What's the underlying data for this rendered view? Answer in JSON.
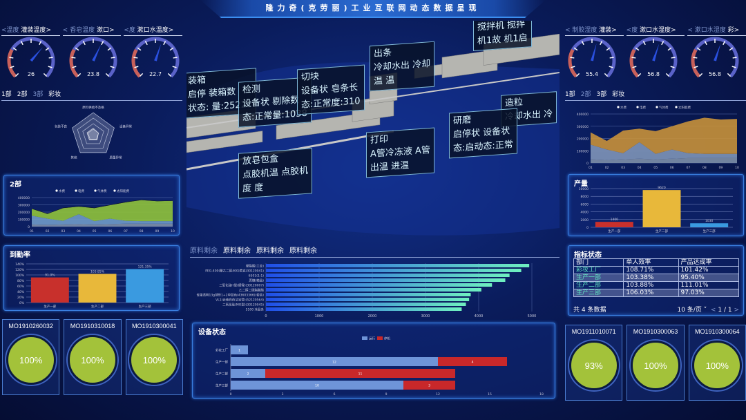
{
  "title": "隆力奇(克劳丽)工业互联网动态数据呈现",
  "left": {
    "gauge_tabs": [
      {
        "prev": "<温度",
        "label": "灌装温度",
        "next": ">"
      },
      {
        "prev": "< 香皂温度",
        "label": "漱口",
        "next": ">"
      },
      {
        "prev": "<度",
        "label": "漱口水温度",
        "next": ">"
      }
    ],
    "gauges": [
      {
        "value": 26,
        "max": 40
      },
      {
        "value": 23.8,
        "max": 40
      },
      {
        "value": 22.7,
        "max": 40
      }
    ],
    "dept_tabs": [
      "1部",
      "2部",
      "3部",
      "彩妆"
    ],
    "dept_active": 2,
    "radar": {
      "axes": [
        "原料供给不及格",
        "设备异常",
        "质量异常",
        "其他",
        "包装不良"
      ]
    },
    "area_title": "2部",
    "attendance_title": "到勤率",
    "mo_cards": [
      {
        "id": "MO1910260032",
        "pct": "100%"
      },
      {
        "id": "MO1910310018",
        "pct": "100%"
      },
      {
        "id": "MO1910300041",
        "pct": "100%"
      }
    ]
  },
  "right": {
    "gauge_tabs": [
      {
        "prev": "< 制胶湿度",
        "label": "灌装",
        "next": ">"
      },
      {
        "prev": "<度",
        "label": "漱口水湿度",
        "next": ">"
      },
      {
        "prev": "< 漱口水湿度",
        "label": "彩",
        "next": ">"
      }
    ],
    "gauges": [
      {
        "value": 55.4,
        "max": 100
      },
      {
        "value": 56.8,
        "max": 100
      },
      {
        "value": 56.8,
        "max": 100
      }
    ],
    "dept_tabs": [
      "1部",
      "2部",
      "3部",
      "彩妆"
    ],
    "dept_active": 1,
    "output_title": "产量",
    "kpi": {
      "title": "指标状态",
      "headers": [
        "部门",
        "单人效率",
        "产品达成率"
      ],
      "rows": [
        [
          "彩妆工厂",
          "108.71%",
          "101.42%"
        ],
        [
          "生产一部",
          "103.38%",
          "95.40%"
        ],
        [
          "生产二部",
          "103.88%",
          "111.01%"
        ],
        [
          "生产三部",
          "106.03%",
          "97.03%"
        ]
      ],
      "total": "共 4 条数据",
      "page_size": "10 条/页",
      "page": "1",
      "pages": "/ 1",
      "prev": "<",
      "next": ">"
    },
    "mo_cards": [
      {
        "id": "MO1911010071",
        "pct": "93%"
      },
      {
        "id": "MO1910300063",
        "pct": "100%"
      },
      {
        "id": "MO1910300064",
        "pct": "100%"
      }
    ]
  },
  "center": {
    "labels": [
      {
        "lines": [
          "装箱",
          "启停   装箱数",
          "状态: 量:25221"
        ]
      },
      {
        "lines": [
          "检测",
          "设备状 剔除数",
          "态:正常量:1038"
        ]
      },
      {
        "lines": [
          "切块",
          "设备状 皂条长",
          "态:正常度:310"
        ]
      },
      {
        "lines": [
          "出条",
          "冷却水出  冷却",
          "温          温"
        ]
      },
      {
        "lines": [
          "搅拌机 搅拌",
          "机1故  机1启"
        ]
      },
      {
        "lines": [
          "造粒",
          "冷却水出  冷"
        ]
      },
      {
        "lines": [
          "研磨",
          "启停状  设备状",
          "态:启动态:正常"
        ]
      },
      {
        "lines": [
          "打印",
          "A管冷冻液 A管",
          "出温        进温"
        ]
      },
      {
        "lines": [
          "放皂包盒",
          "点胶机温  点胶机",
          "度           度"
        ]
      }
    ],
    "material_tabs": [
      "原料剩余",
      "原料剩余",
      "原料剩余",
      "原料剩余"
    ],
    "device_title": "设备状态"
  },
  "chart_data": [
    {
      "id": "radar",
      "type": "radar",
      "axes": [
        "原料供给不及格",
        "设备异常",
        "质量异常",
        "其他",
        "包装不良"
      ],
      "values": [
        0.3,
        0.25,
        0.3,
        0.3,
        0.3
      ]
    },
    {
      "id": "area_left",
      "type": "area",
      "stacked": true,
      "categories": [
        "01",
        "02",
        "03",
        "04",
        "05",
        "06",
        "07",
        "08",
        "09",
        "10"
      ],
      "ylim": [
        0,
        400000
      ],
      "yticks": [
        0,
        100000,
        200000,
        300000,
        400000
      ],
      "legend": "top",
      "series": [
        {
          "name": "水费",
          "color": "#7d8fa8",
          "values": [
            30000,
            25000,
            30000,
            35000,
            30000,
            35000,
            40000,
            40000,
            40000,
            40000
          ]
        },
        {
          "name": "电费",
          "color": "#6f9ac8",
          "values": [
            120000,
            85000,
            50000,
            135000,
            45000,
            75000,
            40000,
            35000,
            35000,
            35000
          ]
        },
        {
          "name": "气体费",
          "color": "#8fc23a",
          "values": [
            95000,
            65000,
            175000,
            105000,
            180000,
            185000,
            255000,
            290000,
            275000,
            280000
          ]
        },
        {
          "name": "太阳能费",
          "color": "#111111",
          "values": [
            5000,
            5000,
            5000,
            5000,
            5000,
            5000,
            5000,
            5000,
            5000,
            5000
          ]
        }
      ]
    },
    {
      "id": "attendance",
      "type": "bar",
      "categories": [
        "生产一部",
        "生产二部",
        "生产三部"
      ],
      "values": [
        91.0,
        103.85,
        121.35
      ],
      "labels": [
        "91.0%",
        "103.85%",
        "121.35%"
      ],
      "colors": [
        "#c8302c",
        "#e8b83a",
        "#3a9ae0"
      ],
      "ylim": [
        0,
        140
      ],
      "yticks": [
        "0%",
        "20%",
        "40%",
        "60%",
        "80%",
        "100%",
        "120%",
        "140%"
      ]
    },
    {
      "id": "area_right",
      "type": "area",
      "stacked": true,
      "categories": [
        "01",
        "02",
        "03",
        "04",
        "05",
        "06",
        "07",
        "08",
        "09",
        "10"
      ],
      "ylim": [
        0,
        400000
      ],
      "yticks": [
        0,
        100000,
        200000,
        300000,
        400000
      ],
      "legend": "top",
      "series": [
        {
          "name": "水费",
          "color": "#7d8fa8",
          "values": [
            30000,
            25000,
            30000,
            35000,
            30000,
            35000,
            40000,
            40000,
            40000,
            40000
          ]
        },
        {
          "name": "电费",
          "color": "#7e95b8",
          "values": [
            120000,
            85000,
            50000,
            135000,
            45000,
            75000,
            40000,
            35000,
            35000,
            35000
          ]
        },
        {
          "name": "气体费",
          "color": "#c8913a",
          "values": [
            100000,
            70000,
            185000,
            110000,
            185000,
            190000,
            260000,
            295000,
            280000,
            285000
          ]
        },
        {
          "name": "太阳能费",
          "color": "#c8913a",
          "values": [
            0,
            0,
            0,
            0,
            0,
            0,
            0,
            0,
            0,
            0
          ]
        }
      ]
    },
    {
      "id": "output",
      "type": "bar",
      "categories": [
        "生产一部",
        "生产二部",
        "生产三部"
      ],
      "values": [
        1400,
        9620,
        1030
      ],
      "labels": [
        "1400",
        "9620",
        "1030"
      ],
      "colors": [
        "#c8302c",
        "#e8b83a",
        "#3a9ae0"
      ],
      "ylim": [
        0,
        10000
      ],
      "yticks": [
        "0",
        "2000",
        "4000",
        "6000",
        "8000",
        "10000"
      ]
    },
    {
      "id": "materials",
      "type": "hbar",
      "categories": [
        "硬脂酸(工业)",
        "PEG-400(聚乙二醇400)黄克(30120041)",
        "6501(1:1)",
        "蔗糖(精晶)",
        "二氧化硅H型(细雪)(30120007)",
        "乙二醇二硬脂酸酯",
        "雀巢透明13g球形1+2单蓝色(43603366)(套装)",
        "VL1(云南白药洁宝管)(52120564)",
        "二氧化硅(MO型)(30120045)",
        "5100 冰晶条"
      ],
      "values": [
        4950,
        4800,
        4580,
        4500,
        4250,
        4050,
        3850,
        3820,
        3760,
        3680
      ],
      "xlim": [
        0,
        5000
      ],
      "xticks": [
        0,
        1000,
        2000,
        3000,
        4000,
        5000
      ]
    },
    {
      "id": "device",
      "type": "stacked-hbar",
      "categories": [
        "彩妆工厂",
        "生产一部",
        "生产二部",
        "生产三部"
      ],
      "xlim": [
        0,
        18
      ],
      "xticks": [
        0,
        3,
        6,
        9,
        12,
        15,
        18
      ],
      "legend": "top",
      "series": [
        {
          "name": "运行",
          "color": "#6e94d8",
          "values": [
            1,
            12,
            2,
            10
          ]
        },
        {
          "name": "停机",
          "color": "#c8282a",
          "values": [
            0,
            4,
            11,
            3
          ]
        }
      ]
    }
  ]
}
